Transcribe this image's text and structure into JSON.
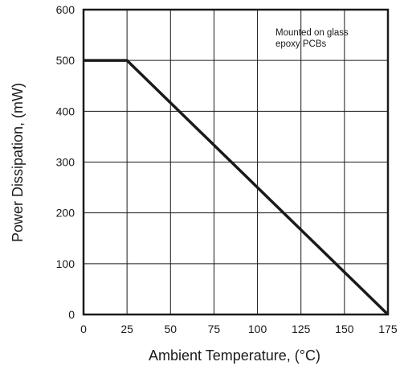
{
  "chart_data": {
    "type": "line",
    "title": "",
    "xlabel": "Ambient Temperature, (°C)",
    "ylabel": "Power Dissipation, (mW)",
    "xlim": [
      0,
      175
    ],
    "ylim": [
      0,
      600
    ],
    "x_ticks": [
      "0",
      "25",
      "50",
      "75",
      "100",
      "125",
      "150",
      "175"
    ],
    "y_ticks": [
      "0",
      "100",
      "200",
      "300",
      "400",
      "500",
      "600"
    ],
    "grid": true,
    "annotation": [
      "Mounted on glass",
      "epoxy PCBs"
    ],
    "series": [
      {
        "x": [
          0,
          25,
          175
        ],
        "y": [
          500,
          500,
          0
        ]
      }
    ],
    "colors": {
      "line": "#1a1a1a",
      "grid": "#1a1a1a",
      "background": "#ffffff"
    }
  }
}
